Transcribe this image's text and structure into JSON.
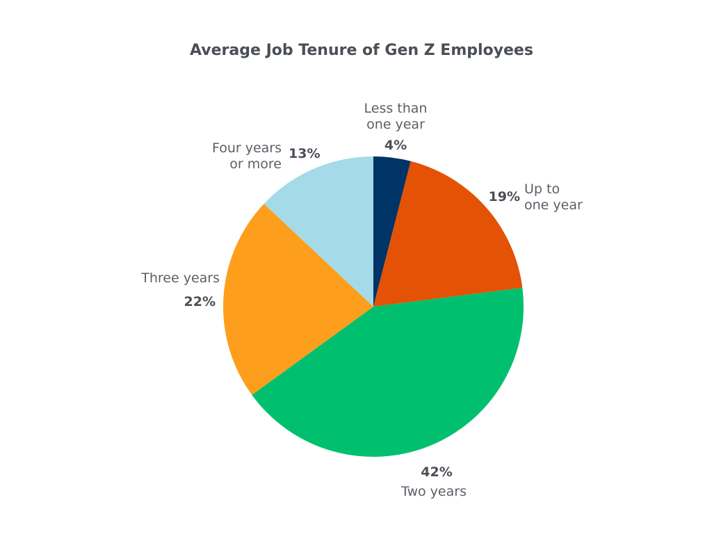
{
  "chart_data": {
    "type": "pie",
    "title": "Average Job Tenure of Gen Z Employees",
    "slices": [
      {
        "label": [
          "Less than",
          "one year"
        ],
        "value": 4,
        "display": "4%",
        "color": "#003366"
      },
      {
        "label": [
          "Up to",
          "one year"
        ],
        "value": 19,
        "display": "19%",
        "color": "#e35205"
      },
      {
        "label": [
          "Two years"
        ],
        "value": 42,
        "display": "42%",
        "color": "#00c06f"
      },
      {
        "label": [
          "Three years"
        ],
        "value": 22,
        "display": "22%",
        "color": "#fd9e1c"
      },
      {
        "label": [
          "Four years",
          "or more"
        ],
        "value": 13,
        "display": "13%",
        "color": "#a5dae8"
      }
    ]
  }
}
